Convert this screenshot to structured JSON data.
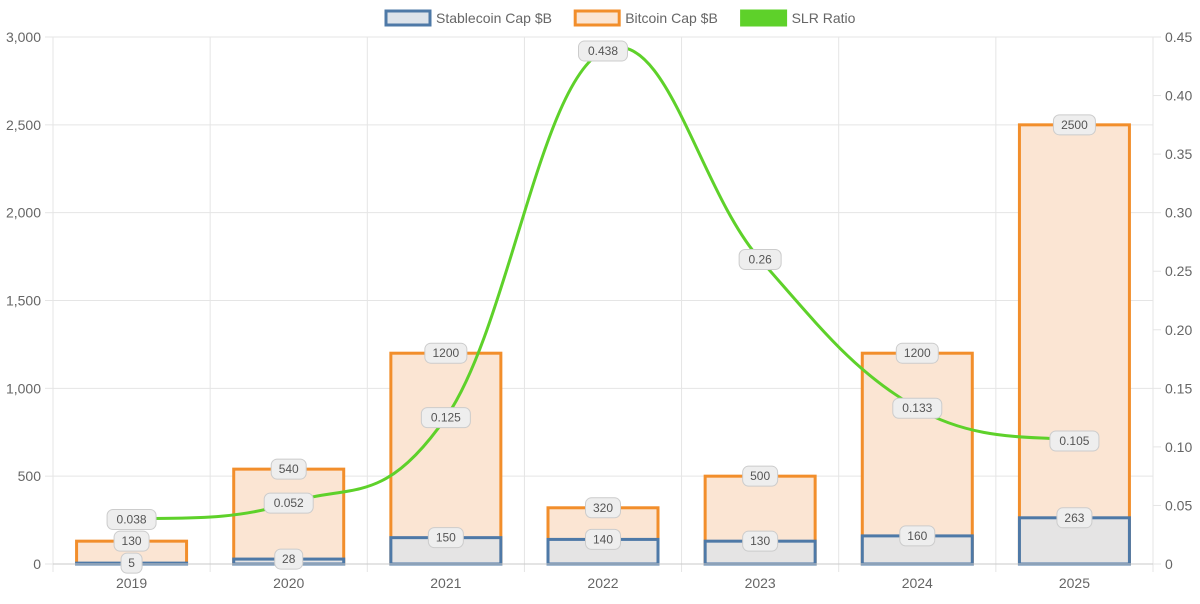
{
  "colors": {
    "stablecoin_border": "#4e79a7",
    "stablecoin_fill": "#dde3ea",
    "bitcoin_border": "#f28e2b",
    "bitcoin_fill": "#fbe5d3",
    "slr_line": "#5ed12a",
    "grid": "#e5e5e5",
    "label_bg": "#eeeeee",
    "label_border": "#cccccc"
  },
  "chart_data": {
    "type": "bar",
    "categories": [
      "2019",
      "2020",
      "2021",
      "2022",
      "2023",
      "2024",
      "2025"
    ],
    "series": [
      {
        "name": "Stablecoin Cap $B",
        "type": "bar",
        "axis": "left",
        "values": [
          5,
          28,
          150,
          140,
          130,
          160,
          263
        ],
        "labels": [
          "5",
          "28",
          "150",
          "140",
          "130",
          "160",
          "263"
        ]
      },
      {
        "name": "Bitcoin Cap $B",
        "type": "bar",
        "axis": "left",
        "values": [
          130,
          540,
          1200,
          320,
          500,
          1200,
          2500
        ],
        "labels": [
          "130",
          "540",
          "1200",
          "320",
          "500",
          "1200",
          "2500"
        ]
      },
      {
        "name": "SLR Ratio",
        "type": "line",
        "axis": "right",
        "values": [
          0.038,
          0.052,
          0.125,
          0.438,
          0.26,
          0.133,
          0.105
        ],
        "labels": [
          "0.038",
          "0.052",
          "0.125",
          "0.438",
          "0.26",
          "0.133",
          "0.105"
        ]
      }
    ],
    "y_left": {
      "min": 0,
      "max": 3000,
      "ticks": [
        "0",
        "500",
        "1,000",
        "1,500",
        "2,000",
        "2,500",
        "3,000"
      ],
      "tick_values": [
        0,
        500,
        1000,
        1500,
        2000,
        2500,
        3000
      ]
    },
    "y_right": {
      "min": 0,
      "max": 0.45,
      "ticks": [
        "0",
        "0.05",
        "0.10",
        "0.15",
        "0.20",
        "0.25",
        "0.30",
        "0.35",
        "0.40",
        "0.45"
      ],
      "tick_values": [
        0,
        0.05,
        0.1,
        0.15,
        0.2,
        0.25,
        0.3,
        0.35,
        0.4,
        0.45
      ]
    },
    "grid": true,
    "legend_position": "top-center",
    "title": "",
    "xlabel": "",
    "ylabel": ""
  }
}
